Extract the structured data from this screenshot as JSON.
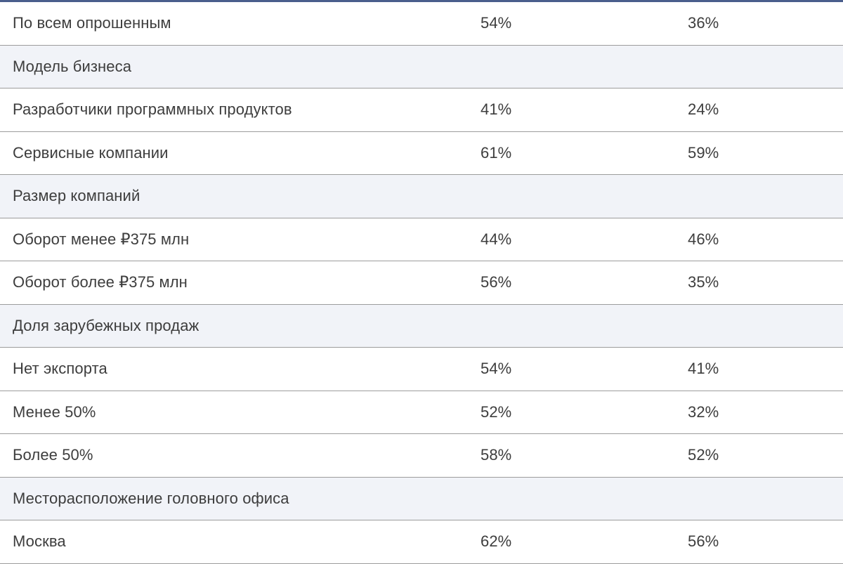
{
  "table": {
    "rows": [
      {
        "type": "data",
        "label": "По всем опрошенным",
        "v1": "54%",
        "v2": "36%"
      },
      {
        "type": "section",
        "label": "Модель бизнеса"
      },
      {
        "type": "data",
        "label": "Разработчики программных продуктов",
        "v1": "41%",
        "v2": "24%"
      },
      {
        "type": "data",
        "label": "Сервисные компании",
        "v1": "61%",
        "v2": "59%"
      },
      {
        "type": "section",
        "label": "Размер компаний"
      },
      {
        "type": "data",
        "label": "Оборот менее ₽375 млн",
        "v1": "44%",
        "v2": "46%"
      },
      {
        "type": "data",
        "label": "Оборот более ₽375 млн",
        "v1": "56%",
        "v2": "35%"
      },
      {
        "type": "section",
        "label": "Доля зарубежных продаж"
      },
      {
        "type": "data",
        "label": "Нет экспорта",
        "v1": "54%",
        "v2": "41%"
      },
      {
        "type": "data",
        "label": "Менее 50%",
        "v1": "52%",
        "v2": "32%"
      },
      {
        "type": "data",
        "label": "Более 50%",
        "v1": "58%",
        "v2": "52%"
      },
      {
        "type": "section",
        "label": "Месторасположение головного офиса"
      },
      {
        "type": "data",
        "label": "Москва",
        "v1": "62%",
        "v2": "56%"
      }
    ]
  },
  "colors": {
    "top_bar": "#4a5e8c",
    "section_background": "#f1f3f8",
    "row_divider": "#9c9c9c",
    "text": "#3d3d3d"
  }
}
